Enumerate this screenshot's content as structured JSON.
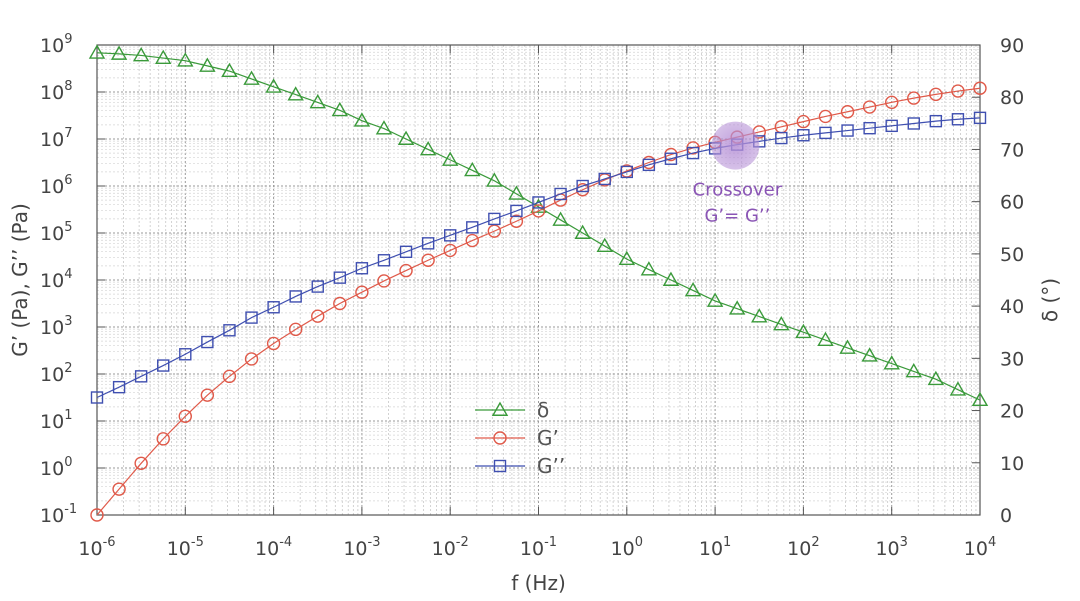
{
  "chart_data": {
    "type": "scatter",
    "title": "",
    "xlabel": "f (Hz)",
    "ylabel_left": "G’ (Pa), G’’ (Pa)",
    "ylabel_right": "δ (°)",
    "xscale": "log",
    "yscale_left": "log",
    "xlim": [
      1e-06,
      10000.0
    ],
    "ylim_left": [
      0.1,
      1000000000.0
    ],
    "ylim_right": [
      0,
      90
    ],
    "grid": true,
    "x_ticks": [
      {
        "base": "10",
        "exp": "-6"
      },
      {
        "base": "10",
        "exp": "-5"
      },
      {
        "base": "10",
        "exp": "-4"
      },
      {
        "base": "10",
        "exp": "-3"
      },
      {
        "base": "10",
        "exp": "-2"
      },
      {
        "base": "10",
        "exp": "-1"
      },
      {
        "base": "10",
        "exp": "0"
      },
      {
        "base": "10",
        "exp": "1"
      },
      {
        "base": "10",
        "exp": "2"
      },
      {
        "base": "10",
        "exp": "3"
      },
      {
        "base": "10",
        "exp": "4"
      }
    ],
    "y_left_ticks": [
      {
        "base": "10",
        "exp": "-1"
      },
      {
        "base": "10",
        "exp": "0"
      },
      {
        "base": "10",
        "exp": "1"
      },
      {
        "base": "10",
        "exp": "2"
      },
      {
        "base": "10",
        "exp": "3"
      },
      {
        "base": "10",
        "exp": "4"
      },
      {
        "base": "10",
        "exp": "5"
      },
      {
        "base": "10",
        "exp": "6"
      },
      {
        "base": "10",
        "exp": "7"
      },
      {
        "base": "10",
        "exp": "8"
      },
      {
        "base": "10",
        "exp": "9"
      }
    ],
    "y_right_ticks": [
      "0",
      "10",
      "20",
      "30",
      "40",
      "50",
      "60",
      "70",
      "80",
      "90"
    ],
    "series": [
      {
        "name": "δ",
        "axis": "right",
        "color": "#3a9a3a",
        "marker": "triangle",
        "log10_x": [
          -6,
          -5.75,
          -5.5,
          -5.25,
          -5,
          -4.75,
          -4.5,
          -4.25,
          -4,
          -3.75,
          -3.5,
          -3.25,
          -3,
          -2.75,
          -2.5,
          -2.25,
          -2,
          -1.75,
          -1.5,
          -1.25,
          -1,
          -0.75,
          -0.5,
          -0.25,
          0,
          0.25,
          0.5,
          0.75,
          1,
          1.25,
          1.5,
          1.75,
          2,
          2.25,
          2.5,
          2.75,
          3,
          3.25,
          3.5,
          3.75,
          4
        ],
        "values": [
          88.5,
          88.3,
          88,
          87.5,
          87,
          86,
          85,
          83.5,
          82,
          80.5,
          79,
          77.5,
          75.5,
          74,
          72,
          70,
          68,
          66,
          64,
          61.5,
          59,
          56.5,
          54,
          51.5,
          49,
          47,
          45,
          43,
          41,
          39.5,
          38,
          36.5,
          35,
          33.5,
          32,
          30.5,
          29,
          27.5,
          26,
          24,
          22
        ]
      },
      {
        "name": "G’",
        "axis": "left",
        "color": "#e05a4a",
        "marker": "circle",
        "log10_x": [
          -6,
          -5.75,
          -5.5,
          -5.25,
          -5,
          -4.75,
          -4.5,
          -4.25,
          -4,
          -3.75,
          -3.5,
          -3.25,
          -3,
          -2.75,
          -2.5,
          -2.25,
          -2,
          -1.75,
          -1.5,
          -1.25,
          -1,
          -0.75,
          -0.5,
          -0.25,
          0,
          0.25,
          0.5,
          0.75,
          1,
          1.25,
          1.5,
          1.75,
          2,
          2.25,
          2.5,
          2.75,
          3,
          3.25,
          3.5,
          3.75,
          4
        ],
        "log10_values": [
          -1,
          -0.45,
          0.1,
          0.62,
          1.1,
          1.55,
          1.95,
          2.32,
          2.65,
          2.95,
          3.23,
          3.5,
          3.74,
          3.98,
          4.2,
          4.42,
          4.63,
          4.84,
          5.04,
          5.25,
          5.47,
          5.7,
          5.92,
          6.13,
          6.32,
          6.5,
          6.67,
          6.81,
          6.93,
          7.04,
          7.15,
          7.26,
          7.37,
          7.48,
          7.58,
          7.68,
          7.78,
          7.87,
          7.95,
          8.02,
          8.08
        ]
      },
      {
        "name": "G’’",
        "axis": "left",
        "color": "#3f4fb0",
        "marker": "square",
        "log10_x": [
          -6,
          -5.75,
          -5.5,
          -5.25,
          -5,
          -4.75,
          -4.5,
          -4.25,
          -4,
          -3.75,
          -3.5,
          -3.25,
          -3,
          -2.75,
          -2.5,
          -2.25,
          -2,
          -1.75,
          -1.5,
          -1.25,
          -1,
          -0.75,
          -0.5,
          -0.25,
          0,
          0.25,
          0.5,
          0.75,
          1,
          1.25,
          1.5,
          1.75,
          2,
          2.25,
          2.5,
          2.75,
          3,
          3.25,
          3.5,
          3.75,
          4
        ],
        "log10_values": [
          1.5,
          1.72,
          1.95,
          2.18,
          2.42,
          2.68,
          2.93,
          3.2,
          3.42,
          3.65,
          3.86,
          4.05,
          4.25,
          4.42,
          4.6,
          4.78,
          4.95,
          5.12,
          5.3,
          5.47,
          5.65,
          5.83,
          6,
          6.15,
          6.3,
          6.45,
          6.58,
          6.7,
          6.8,
          6.88,
          6.95,
          7.02,
          7.08,
          7.13,
          7.18,
          7.23,
          7.28,
          7.33,
          7.38,
          7.42,
          7.45
        ]
      }
    ],
    "legend": {
      "placement": "center-bottom",
      "entries": [
        "δ",
        "G’",
        "G’’"
      ]
    },
    "annotation": {
      "line1": "Crossover",
      "line2": "G’= G’’",
      "log10_x": 1.23,
      "log10_y": 6.86,
      "color": "#8a55b5"
    }
  }
}
